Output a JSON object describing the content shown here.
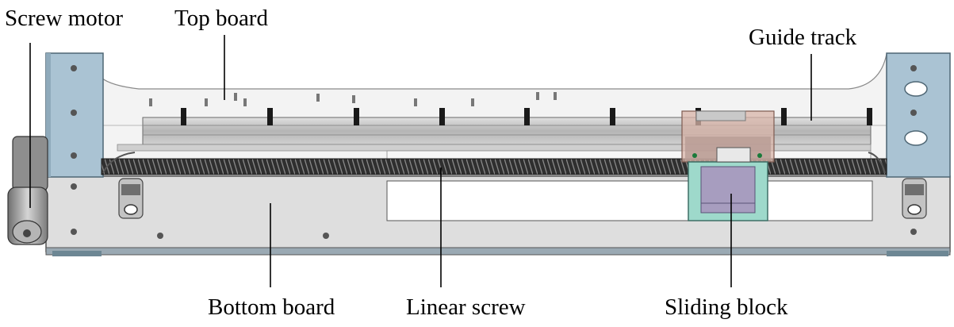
{
  "labels": {
    "screw_motor": "Screw motor",
    "top_board": "Top board",
    "guide_track": "Guide track",
    "bottom_board": "Bottom board",
    "linear_screw": "Linear screw",
    "sliding_block": "Sliding block"
  },
  "colors": {
    "side_plate": "#a9c2d2",
    "side_plate_edge": "#5d7482",
    "bottom_board": "#dcdcdc",
    "rail": "#b9b9b9",
    "screw": "#3a3a3a",
    "slider_frame": "#8fd1c2",
    "slider_carriage": "#c9a89c",
    "slider_block": "#a69cbe",
    "motor": "#9a9a9a",
    "leader_line": "#000000"
  }
}
